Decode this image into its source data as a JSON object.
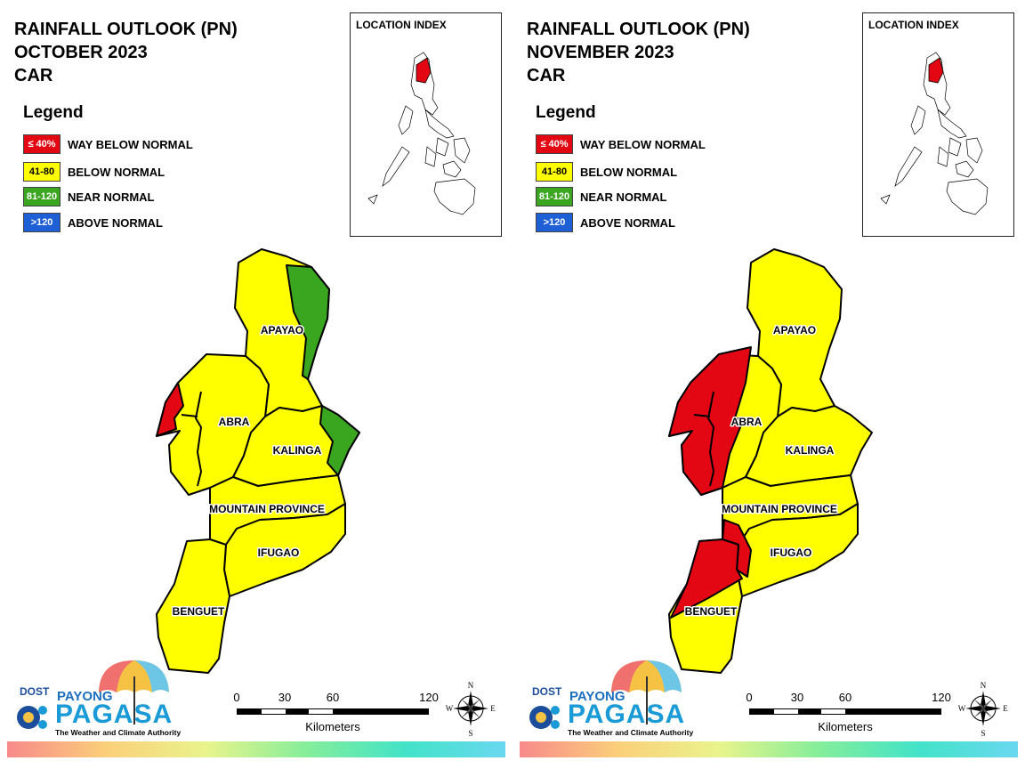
{
  "panels": [
    {
      "title_lines": [
        "RAINFALL OUTLOOK (PN)",
        "OCTOBER 2023",
        "CAR"
      ],
      "legend_title": "Legend",
      "legend": [
        {
          "code": "≤ 40%",
          "label": "WAY BELOW NORMAL",
          "color": "#e30613",
          "text_color": "#ffffff"
        },
        {
          "code": "41-80",
          "label": "BELOW NORMAL",
          "color": "#ffff00",
          "text_color": "#000000"
        },
        {
          "code": "81-120",
          "label": "NEAR NORMAL",
          "color": "#3aa51f",
          "text_color": "#ffffff"
        },
        {
          "code": ">120",
          "label": "ABOVE NORMAL",
          "color": "#1f5fd6",
          "text_color": "#ffffff"
        }
      ],
      "location_index_label": "LOCATION INDEX",
      "provinces": {
        "apayao": {
          "name": "APAYAO",
          "category": "BELOW NORMAL"
        },
        "abra": {
          "name": "ABRA",
          "category": "BELOW NORMAL"
        },
        "kalinga": {
          "name": "KALINGA",
          "category": "BELOW NORMAL"
        },
        "mountain_province": {
          "name": "MOUNTAIN PROVINCE",
          "category": "BELOW NORMAL"
        },
        "ifugao": {
          "name": "IFUGAO",
          "category": "BELOW NORMAL"
        },
        "benguet": {
          "name": "BENGUET",
          "category": "BELOW NORMAL"
        }
      }
    },
    {
      "title_lines": [
        "RAINFALL OUTLOOK (PN)",
        "NOVEMBER 2023",
        "CAR"
      ],
      "legend_title": "Legend",
      "legend": [
        {
          "code": "≤ 40%",
          "label": "WAY BELOW NORMAL",
          "color": "#e30613",
          "text_color": "#ffffff"
        },
        {
          "code": "41-80",
          "label": "BELOW NORMAL",
          "color": "#ffff00",
          "text_color": "#000000"
        },
        {
          "code": "81-120",
          "label": "NEAR NORMAL",
          "color": "#3aa51f",
          "text_color": "#ffffff"
        },
        {
          "code": ">120",
          "label": "ABOVE NORMAL",
          "color": "#1f5fd6",
          "text_color": "#ffffff"
        }
      ],
      "location_index_label": "LOCATION INDEX",
      "provinces": {
        "apayao": {
          "name": "APAYAO",
          "category": "BELOW NORMAL"
        },
        "abra": {
          "name": "ABRA",
          "category": "BELOW NORMAL / WAY BELOW NORMAL"
        },
        "kalinga": {
          "name": "KALINGA",
          "category": "BELOW NORMAL"
        },
        "mountain_province": {
          "name": "MOUNTAIN PROVINCE",
          "category": "BELOW NORMAL"
        },
        "ifugao": {
          "name": "IFUGAO",
          "category": "BELOW NORMAL"
        },
        "benguet": {
          "name": "BENGUET",
          "category": "BELOW NORMAL / WAY BELOW NORMAL"
        }
      }
    }
  ],
  "logo": {
    "dost": "DOST",
    "payong": "PAYONG",
    "pagasa": "PAGASA",
    "tagline": "The Weather and Climate Authority"
  },
  "scale": {
    "ticks": [
      "0",
      "30",
      "60",
      "120"
    ],
    "unit": "Kilometers"
  },
  "compass": {
    "n": "N",
    "s": "S",
    "e": "E",
    "w": "W"
  },
  "colors": {
    "outline": "#000000",
    "below_normal": "#ffff00",
    "way_below_normal": "#e30613",
    "near_normal": "#3aa51f",
    "above_normal": "#1f5fd6"
  }
}
